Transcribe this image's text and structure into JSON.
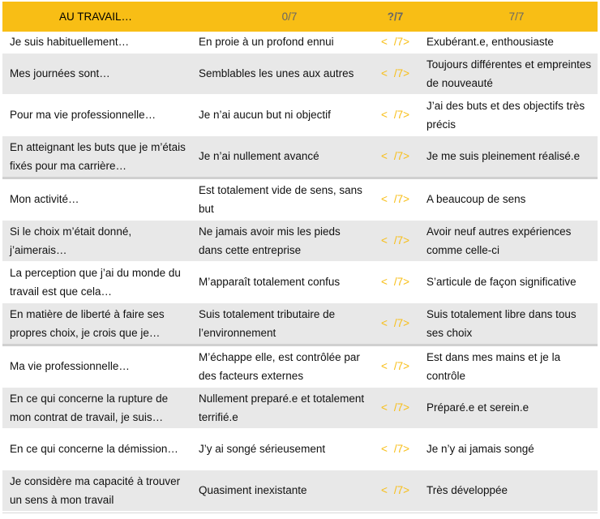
{
  "header": {
    "col1": "AU TRAVAIL…",
    "col2": "0/7",
    "col3": "?/7",
    "col4": "7/7"
  },
  "score_cell": {
    "lt": "<",
    "val": "/7>"
  },
  "rows": [
    {
      "q": "Je suis habituellement…",
      "low": "En proie à un profond ennui",
      "high": "Exubérant.e, enthousiaste"
    },
    {
      "q": "Mes journées sont…",
      "low": "Semblables les unes aux autres",
      "high": "Toujours différentes et empreintes de nouveauté"
    },
    {
      "q": "Pour ma vie professionnelle…",
      "low": "Je n’ai aucun but ni objectif",
      "high": "J’ai des buts et des objectifs très précis"
    },
    {
      "q": "En atteignant les buts que je m’étais fixés pour ma carrière…",
      "low": "Je n’ai nullement avancé",
      "high": "Je me suis pleinement réalisé.e"
    },
    {
      "q": "Mon activité…",
      "low": "Est totalement vide de sens, sans but",
      "high": "A beaucoup de sens"
    },
    {
      "q": "Si le choix m’était donné, j’aimerais…",
      "low": "Ne jamais avoir mis les pieds dans cette entreprise",
      "high": "Avoir neuf autres expériences comme celle-ci"
    },
    {
      "q": "La perception que j’ai du monde du travail est que cela…",
      "low": "M’apparaît totalement confus",
      "high": "S’articule de façon significative"
    },
    {
      "q": "En matière de liberté à faire ses propres choix, je crois que je…",
      "low": "Suis totalement tributaire de l’environnement",
      "high": "Suis totalement libre dans tous ses choix"
    },
    {
      "q": "Ma vie professionnelle…",
      "low": "M’échappe elle, est contrôlée par des facteurs externes",
      "high": "Est dans mes mains et je la contrôle"
    },
    {
      "q": "En ce qui concerne la rupture de mon contrat de travail, je suis…",
      "low": "Nullement preparé.e et totalement terrifié.e",
      "high": "Préparé.e et serein.e"
    },
    {
      "q": "En ce qui concerne la démission…",
      "low": "J’y ai songé sérieusement",
      "high": "Je n’y ai jamais songé"
    },
    {
      "q": "Je considère ma capacité à trouver un sens à mon travail",
      "low": "Quasiment inexistante",
      "high": "Très développée"
    }
  ],
  "colors": {
    "header_bg": "#f8be15",
    "stripe": "#e8e8e8",
    "score": "#f8be15"
  }
}
